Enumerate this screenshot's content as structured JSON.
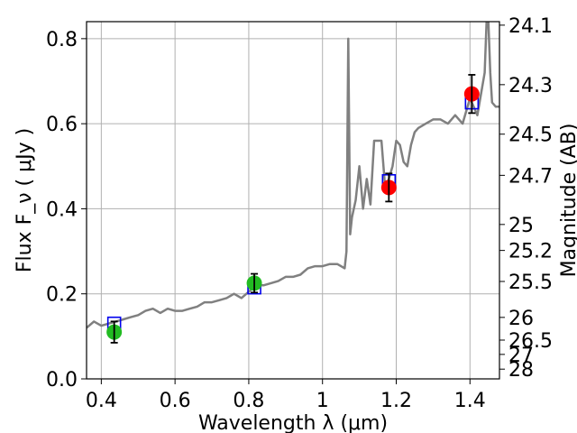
{
  "chart_data": {
    "type": "scatter",
    "xlabel": "Wavelength  λ (μm)",
    "ylabel": "Flux  F_ν  ( μJy )",
    "ylabel_right": "Magnitude (AB)",
    "xlim": [
      0.36,
      1.48
    ],
    "ylim": [
      0.0,
      0.84
    ],
    "grid": true,
    "x_ticks": [
      0.4,
      0.6,
      0.8,
      1.0,
      1.2,
      1.4
    ],
    "x_tick_labels": [
      "0.4",
      "0.6",
      "0.8",
      "1",
      "1.2",
      "1.4"
    ],
    "y_ticks": [
      0.0,
      0.2,
      0.4,
      0.6,
      0.8
    ],
    "y_tick_labels": [
      "0.0",
      "0.2",
      "0.4",
      "0.6",
      "0.8"
    ],
    "right_ticks": [
      24.1,
      24.3,
      24.5,
      24.7,
      25,
      25.2,
      25.5,
      26,
      26.5,
      27,
      28
    ],
    "right_tick_labels": [
      "24.1",
      "24.3",
      "24.5",
      "24.7",
      "25",
      "25.2",
      "25.5",
      "26",
      "26.5",
      "27",
      "28"
    ],
    "colors": {
      "model": "#808080",
      "box": "#0000ee",
      "green": "#22bb22",
      "red": "#ff0000",
      "grid": "#b0b0b0",
      "errorbar": "#000000"
    },
    "series": [
      {
        "style": "line",
        "x": [
          0.36,
          0.38,
          0.4,
          0.42,
          0.44,
          0.46,
          0.48,
          0.5,
          0.52,
          0.54,
          0.56,
          0.58,
          0.6,
          0.62,
          0.64,
          0.66,
          0.68,
          0.7,
          0.72,
          0.74,
          0.76,
          0.78,
          0.8,
          0.82,
          0.84,
          0.86,
          0.88,
          0.9,
          0.92,
          0.94,
          0.96,
          0.98,
          1.0,
          1.02,
          1.04,
          1.06,
          1.065,
          1.07,
          1.075,
          1.08,
          1.09,
          1.1,
          1.11,
          1.12,
          1.13,
          1.14,
          1.15,
          1.16,
          1.17,
          1.18,
          1.19,
          1.2,
          1.21,
          1.22,
          1.23,
          1.24,
          1.25,
          1.26,
          1.28,
          1.3,
          1.32,
          1.34,
          1.36,
          1.38,
          1.4,
          1.42,
          1.44,
          1.445,
          1.45,
          1.455,
          1.46,
          1.47,
          1.48
        ],
        "y": [
          0.12,
          0.135,
          0.125,
          0.13,
          0.135,
          0.14,
          0.145,
          0.15,
          0.16,
          0.165,
          0.155,
          0.165,
          0.16,
          0.16,
          0.165,
          0.17,
          0.18,
          0.18,
          0.185,
          0.19,
          0.2,
          0.19,
          0.205,
          0.22,
          0.22,
          0.225,
          0.23,
          0.24,
          0.24,
          0.245,
          0.26,
          0.265,
          0.265,
          0.27,
          0.27,
          0.26,
          0.3,
          0.8,
          0.34,
          0.38,
          0.42,
          0.5,
          0.4,
          0.47,
          0.41,
          0.56,
          0.56,
          0.56,
          0.45,
          0.47,
          0.5,
          0.56,
          0.55,
          0.51,
          0.5,
          0.55,
          0.58,
          0.59,
          0.6,
          0.61,
          0.61,
          0.6,
          0.62,
          0.6,
          0.66,
          0.62,
          0.72,
          0.84,
          0.84,
          0.72,
          0.65,
          0.64,
          0.64
        ]
      },
      {
        "name": "boxes",
        "style": "square",
        "x": [
          0.435,
          0.815,
          1.18,
          1.405
        ],
        "y": [
          0.13,
          0.215,
          0.465,
          0.65
        ]
      },
      {
        "name": "green",
        "style": "circle",
        "x": [
          0.435,
          0.815
        ],
        "y": [
          0.11,
          0.225
        ],
        "yerr": [
          0.025,
          0.022
        ]
      },
      {
        "name": "red",
        "style": "circle",
        "x": [
          1.18,
          1.405
        ],
        "y": [
          0.45,
          0.67
        ],
        "yerr": [
          0.033,
          0.045
        ]
      }
    ]
  }
}
